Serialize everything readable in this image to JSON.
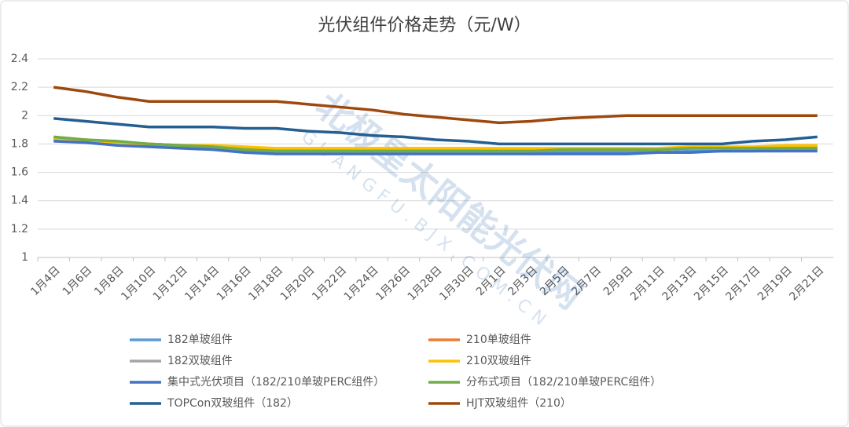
{
  "chart_data": {
    "type": "line",
    "title": "光伏组件价格走势（元/W）",
    "categories": [
      "1月4日",
      "1月6日",
      "1月8日",
      "1月10日",
      "1月12日",
      "1月14日",
      "1月16日",
      "1月18日",
      "1月20日",
      "1月22日",
      "1月24日",
      "1月26日",
      "1月28日",
      "1月30日",
      "2月1日",
      "2月3日",
      "2月5日",
      "2月7日",
      "2月9日",
      "2月11日",
      "2月13日",
      "2月15日",
      "2月17日",
      "2月19日",
      "2月21日"
    ],
    "series": [
      {
        "name": "182单玻组件",
        "color": "#5b9bd5",
        "values": [
          1.83,
          1.82,
          1.8,
          1.79,
          1.78,
          1.77,
          1.75,
          1.74,
          1.74,
          1.74,
          1.74,
          1.74,
          1.74,
          1.74,
          1.74,
          1.74,
          1.74,
          1.74,
          1.74,
          1.74,
          1.75,
          1.75,
          1.75,
          1.76,
          1.76
        ]
      },
      {
        "name": "210单玻组件",
        "color": "#ed7d31",
        "values": [
          1.84,
          1.83,
          1.81,
          1.8,
          1.79,
          1.78,
          1.77,
          1.76,
          1.76,
          1.76,
          1.76,
          1.76,
          1.76,
          1.76,
          1.76,
          1.76,
          1.76,
          1.76,
          1.76,
          1.76,
          1.77,
          1.77,
          1.77,
          1.78,
          1.78
        ]
      },
      {
        "name": "182双玻组件",
        "color": "#a5a5a5",
        "values": [
          1.84,
          1.83,
          1.81,
          1.8,
          1.79,
          1.78,
          1.76,
          1.75,
          1.75,
          1.75,
          1.75,
          1.75,
          1.75,
          1.75,
          1.75,
          1.75,
          1.76,
          1.76,
          1.76,
          1.76,
          1.77,
          1.77,
          1.77,
          1.77,
          1.77
        ]
      },
      {
        "name": "210双玻组件",
        "color": "#ffc000",
        "values": [
          1.84,
          1.83,
          1.81,
          1.8,
          1.79,
          1.79,
          1.78,
          1.77,
          1.77,
          1.77,
          1.77,
          1.77,
          1.77,
          1.77,
          1.77,
          1.77,
          1.77,
          1.77,
          1.77,
          1.77,
          1.78,
          1.78,
          1.78,
          1.79,
          1.79
        ]
      },
      {
        "name": "集中式光伏项目（182/210单玻PERC组件）",
        "color": "#4472c4",
        "values": [
          1.82,
          1.81,
          1.79,
          1.78,
          1.77,
          1.76,
          1.74,
          1.73,
          1.73,
          1.73,
          1.73,
          1.73,
          1.73,
          1.73,
          1.73,
          1.73,
          1.73,
          1.73,
          1.73,
          1.74,
          1.74,
          1.75,
          1.75,
          1.75,
          1.75
        ]
      },
      {
        "name": "分布式项目（182/210单玻PERC组件）",
        "color": "#70ad47",
        "values": [
          1.85,
          1.83,
          1.82,
          1.8,
          1.79,
          1.78,
          1.76,
          1.75,
          1.75,
          1.75,
          1.75,
          1.75,
          1.75,
          1.75,
          1.75,
          1.75,
          1.76,
          1.76,
          1.76,
          1.76,
          1.77,
          1.77,
          1.77,
          1.77,
          1.77
        ]
      },
      {
        "name": "TOPCon双玻组件（182）",
        "color": "#255e91",
        "values": [
          1.98,
          1.96,
          1.94,
          1.92,
          1.92,
          1.92,
          1.91,
          1.91,
          1.89,
          1.88,
          1.86,
          1.85,
          1.83,
          1.82,
          1.8,
          1.8,
          1.8,
          1.8,
          1.8,
          1.8,
          1.8,
          1.8,
          1.82,
          1.83,
          1.85
        ]
      },
      {
        "name": "HJT双玻组件（210）",
        "color": "#9e480e",
        "values": [
          2.2,
          2.17,
          2.13,
          2.1,
          2.1,
          2.1,
          2.1,
          2.1,
          2.08,
          2.06,
          2.04,
          2.01,
          1.99,
          1.97,
          1.95,
          1.96,
          1.98,
          1.99,
          2.0,
          2.0,
          2.0,
          2.0,
          2.0,
          2.0,
          2.0
        ]
      }
    ],
    "ylim": [
      1,
      2.4
    ],
    "yticks": [
      1,
      1.2,
      1.4,
      1.6,
      1.8,
      2,
      2.2,
      2.4
    ],
    "grid": true,
    "watermark": [
      "北极星太阳能光伏网",
      "GUANGFU.BJX.COM.CN"
    ]
  }
}
